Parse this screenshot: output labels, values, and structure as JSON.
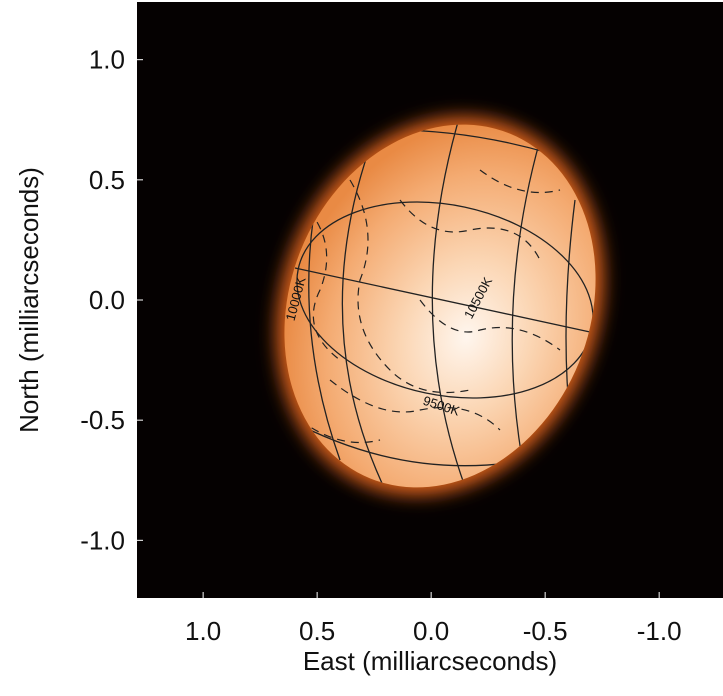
{
  "chart_data": {
    "type": "image",
    "x_label": "East (milliarcseconds)",
    "y_label": "North (milliarcseconds)",
    "xlim": [
      1.29,
      -1.28
    ],
    "ylim": [
      -1.24,
      1.24
    ],
    "xticks": [
      {
        "value": 1,
        "label": "1.0"
      },
      0.5,
      {
        "value": 0,
        "label": "0.0"
      },
      -0.5,
      {
        "value": -1,
        "label": "-1.0"
      }
    ],
    "yticks": [
      {
        "value": 1,
        "label": "1.0"
      },
      0.5,
      {
        "value": 0,
        "label": "0.0"
      },
      -0.5,
      {
        "value": -1,
        "label": "-1.0"
      }
    ],
    "annotations": [
      "10000K",
      "10500K",
      "9500K"
    ]
  }
}
